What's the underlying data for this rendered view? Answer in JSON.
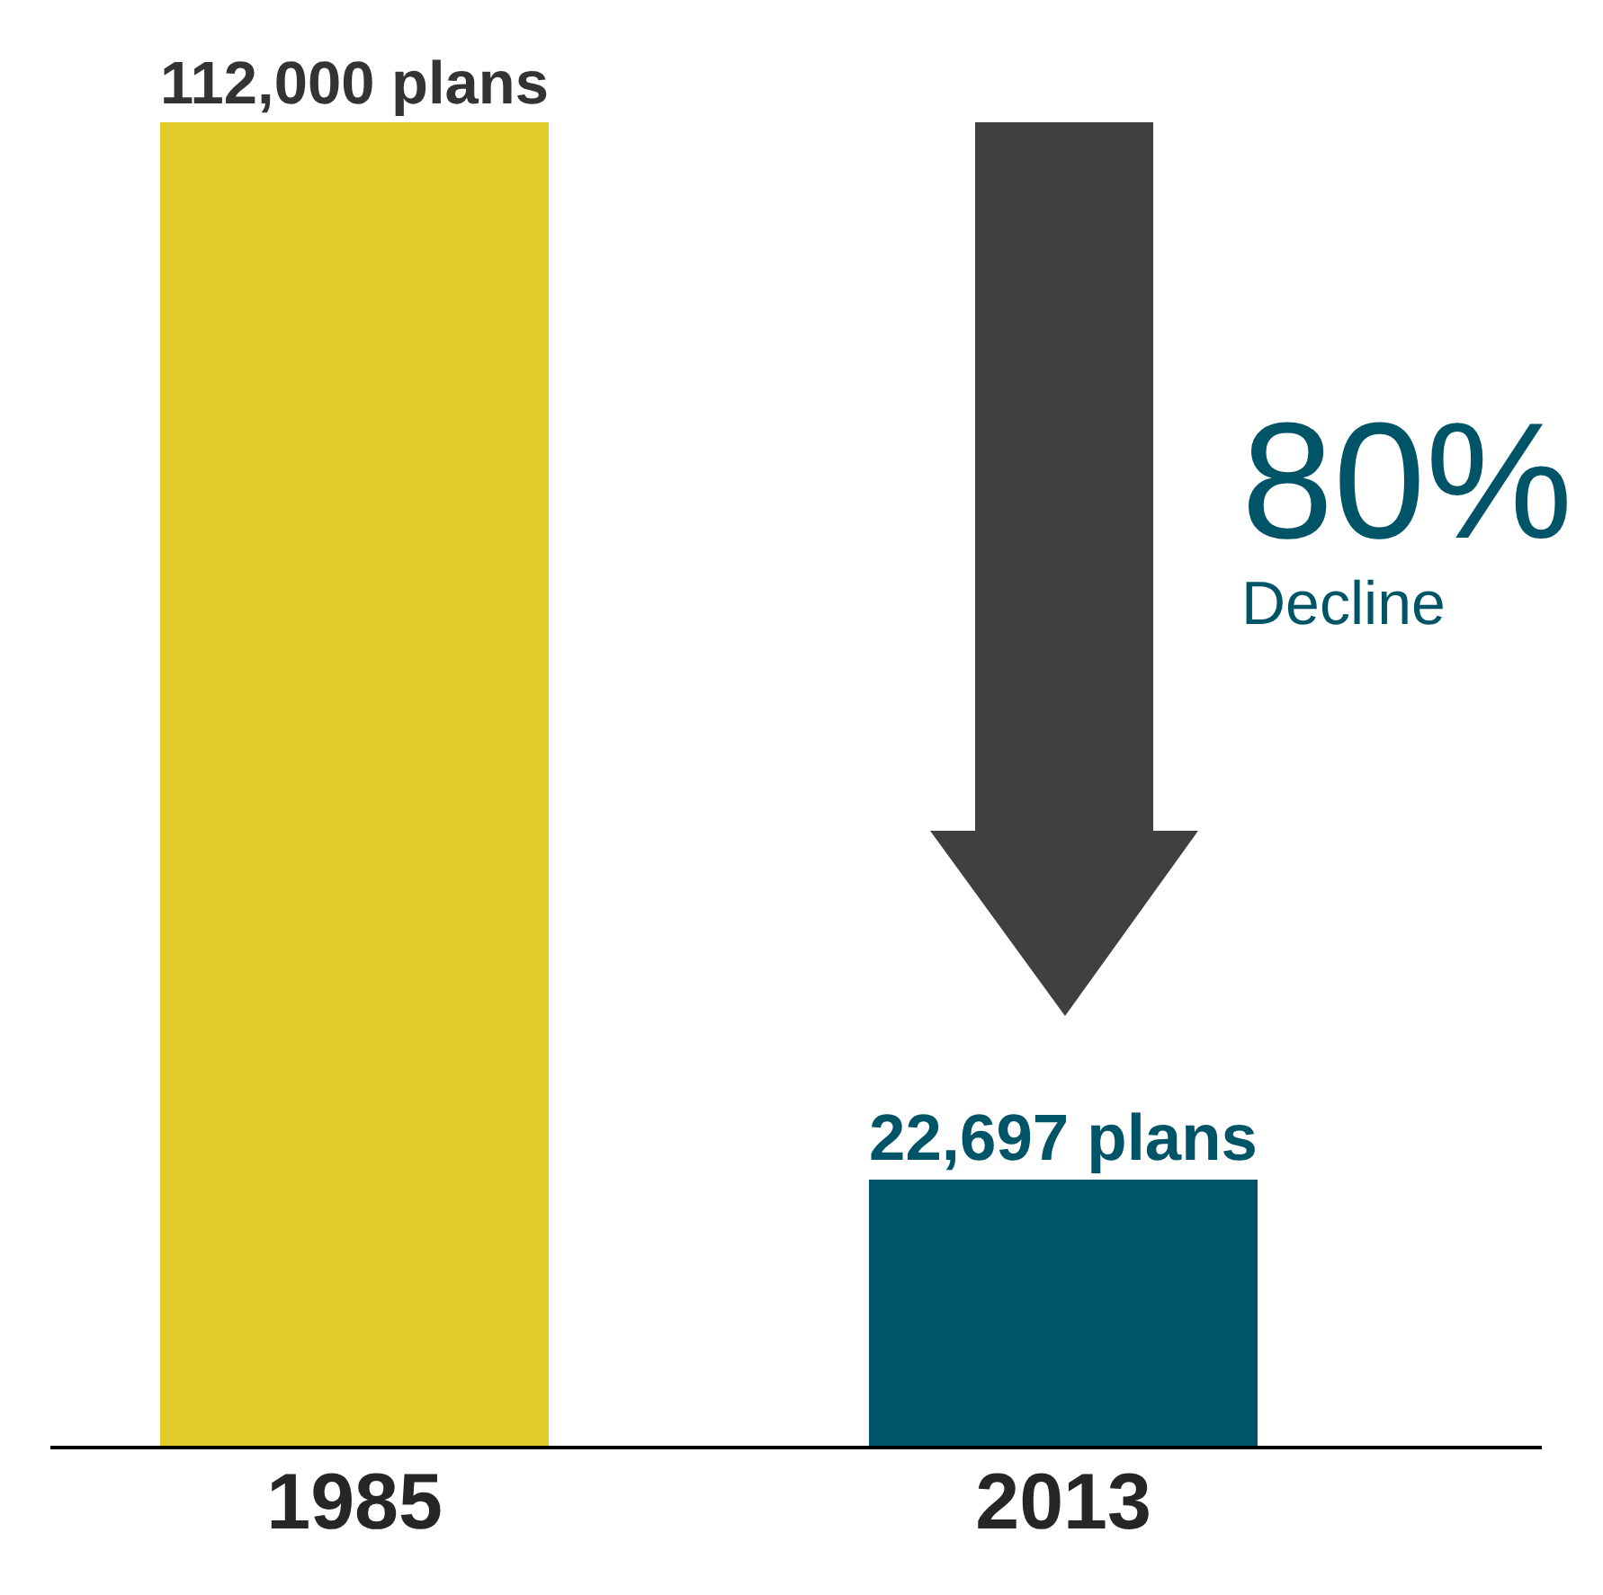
{
  "chart_data": {
    "type": "bar",
    "categories": [
      "1985",
      "2013"
    ],
    "values": [
      112000,
      22697
    ],
    "colors": [
      "#e2cc2a",
      "#005468"
    ],
    "value_labels": [
      "112,000 plans",
      "22,697 plans"
    ],
    "annotations": [
      "80%",
      "Decline"
    ]
  }
}
